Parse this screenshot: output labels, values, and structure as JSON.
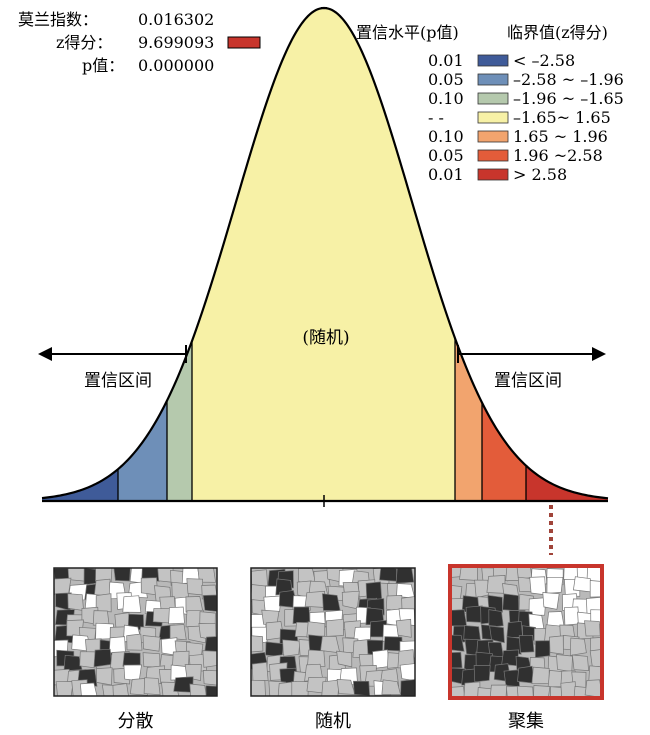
{
  "stats": {
    "moran_label": "莫兰指数：",
    "moran_value": "0.016302",
    "z_label": "z得分：",
    "z_value": "9.699093",
    "z_marker_color": "#c8352c",
    "p_label": "p值：",
    "p_value": "0.000000"
  },
  "legend": {
    "header_left": "置信水平(p值)",
    "header_right": "临界值(z得分)",
    "rows": [
      {
        "p": "0.01",
        "range": "< –2.58",
        "color": "#3f5b99"
      },
      {
        "p": "0.05",
        "range": "–2.58 ~ –1.96",
        "color": "#6e8fb8"
      },
      {
        "p": "0.10",
        "range": "–1.96 ~ –1.65",
        "color": "#b5c9ad"
      },
      {
        "p": "- -",
        "range": "–1.65~ 1.65",
        "color": "#f7f1a6"
      },
      {
        "p": "0.10",
        "range": "1.65 ~ 1.96",
        "color": "#f2a46e"
      },
      {
        "p": "0.05",
        "range": "1.96 ~2.58",
        "color": "#e35c3a"
      },
      {
        "p": "0.01",
        "range": "> 2.58",
        "color": "#c8352c"
      }
    ]
  },
  "curve": {
    "center_label": "(随机)",
    "left_arrow_label": "置信区间",
    "right_arrow_label": "置信区间"
  },
  "maps": [
    {
      "label": "分散",
      "highlighted": false
    },
    {
      "label": "随机",
      "highlighted": false
    },
    {
      "label": "聚集",
      "highlighted": true
    }
  ],
  "colors": {
    "map_highlight_border": "#c8352c",
    "connector": "#a0443a"
  }
}
